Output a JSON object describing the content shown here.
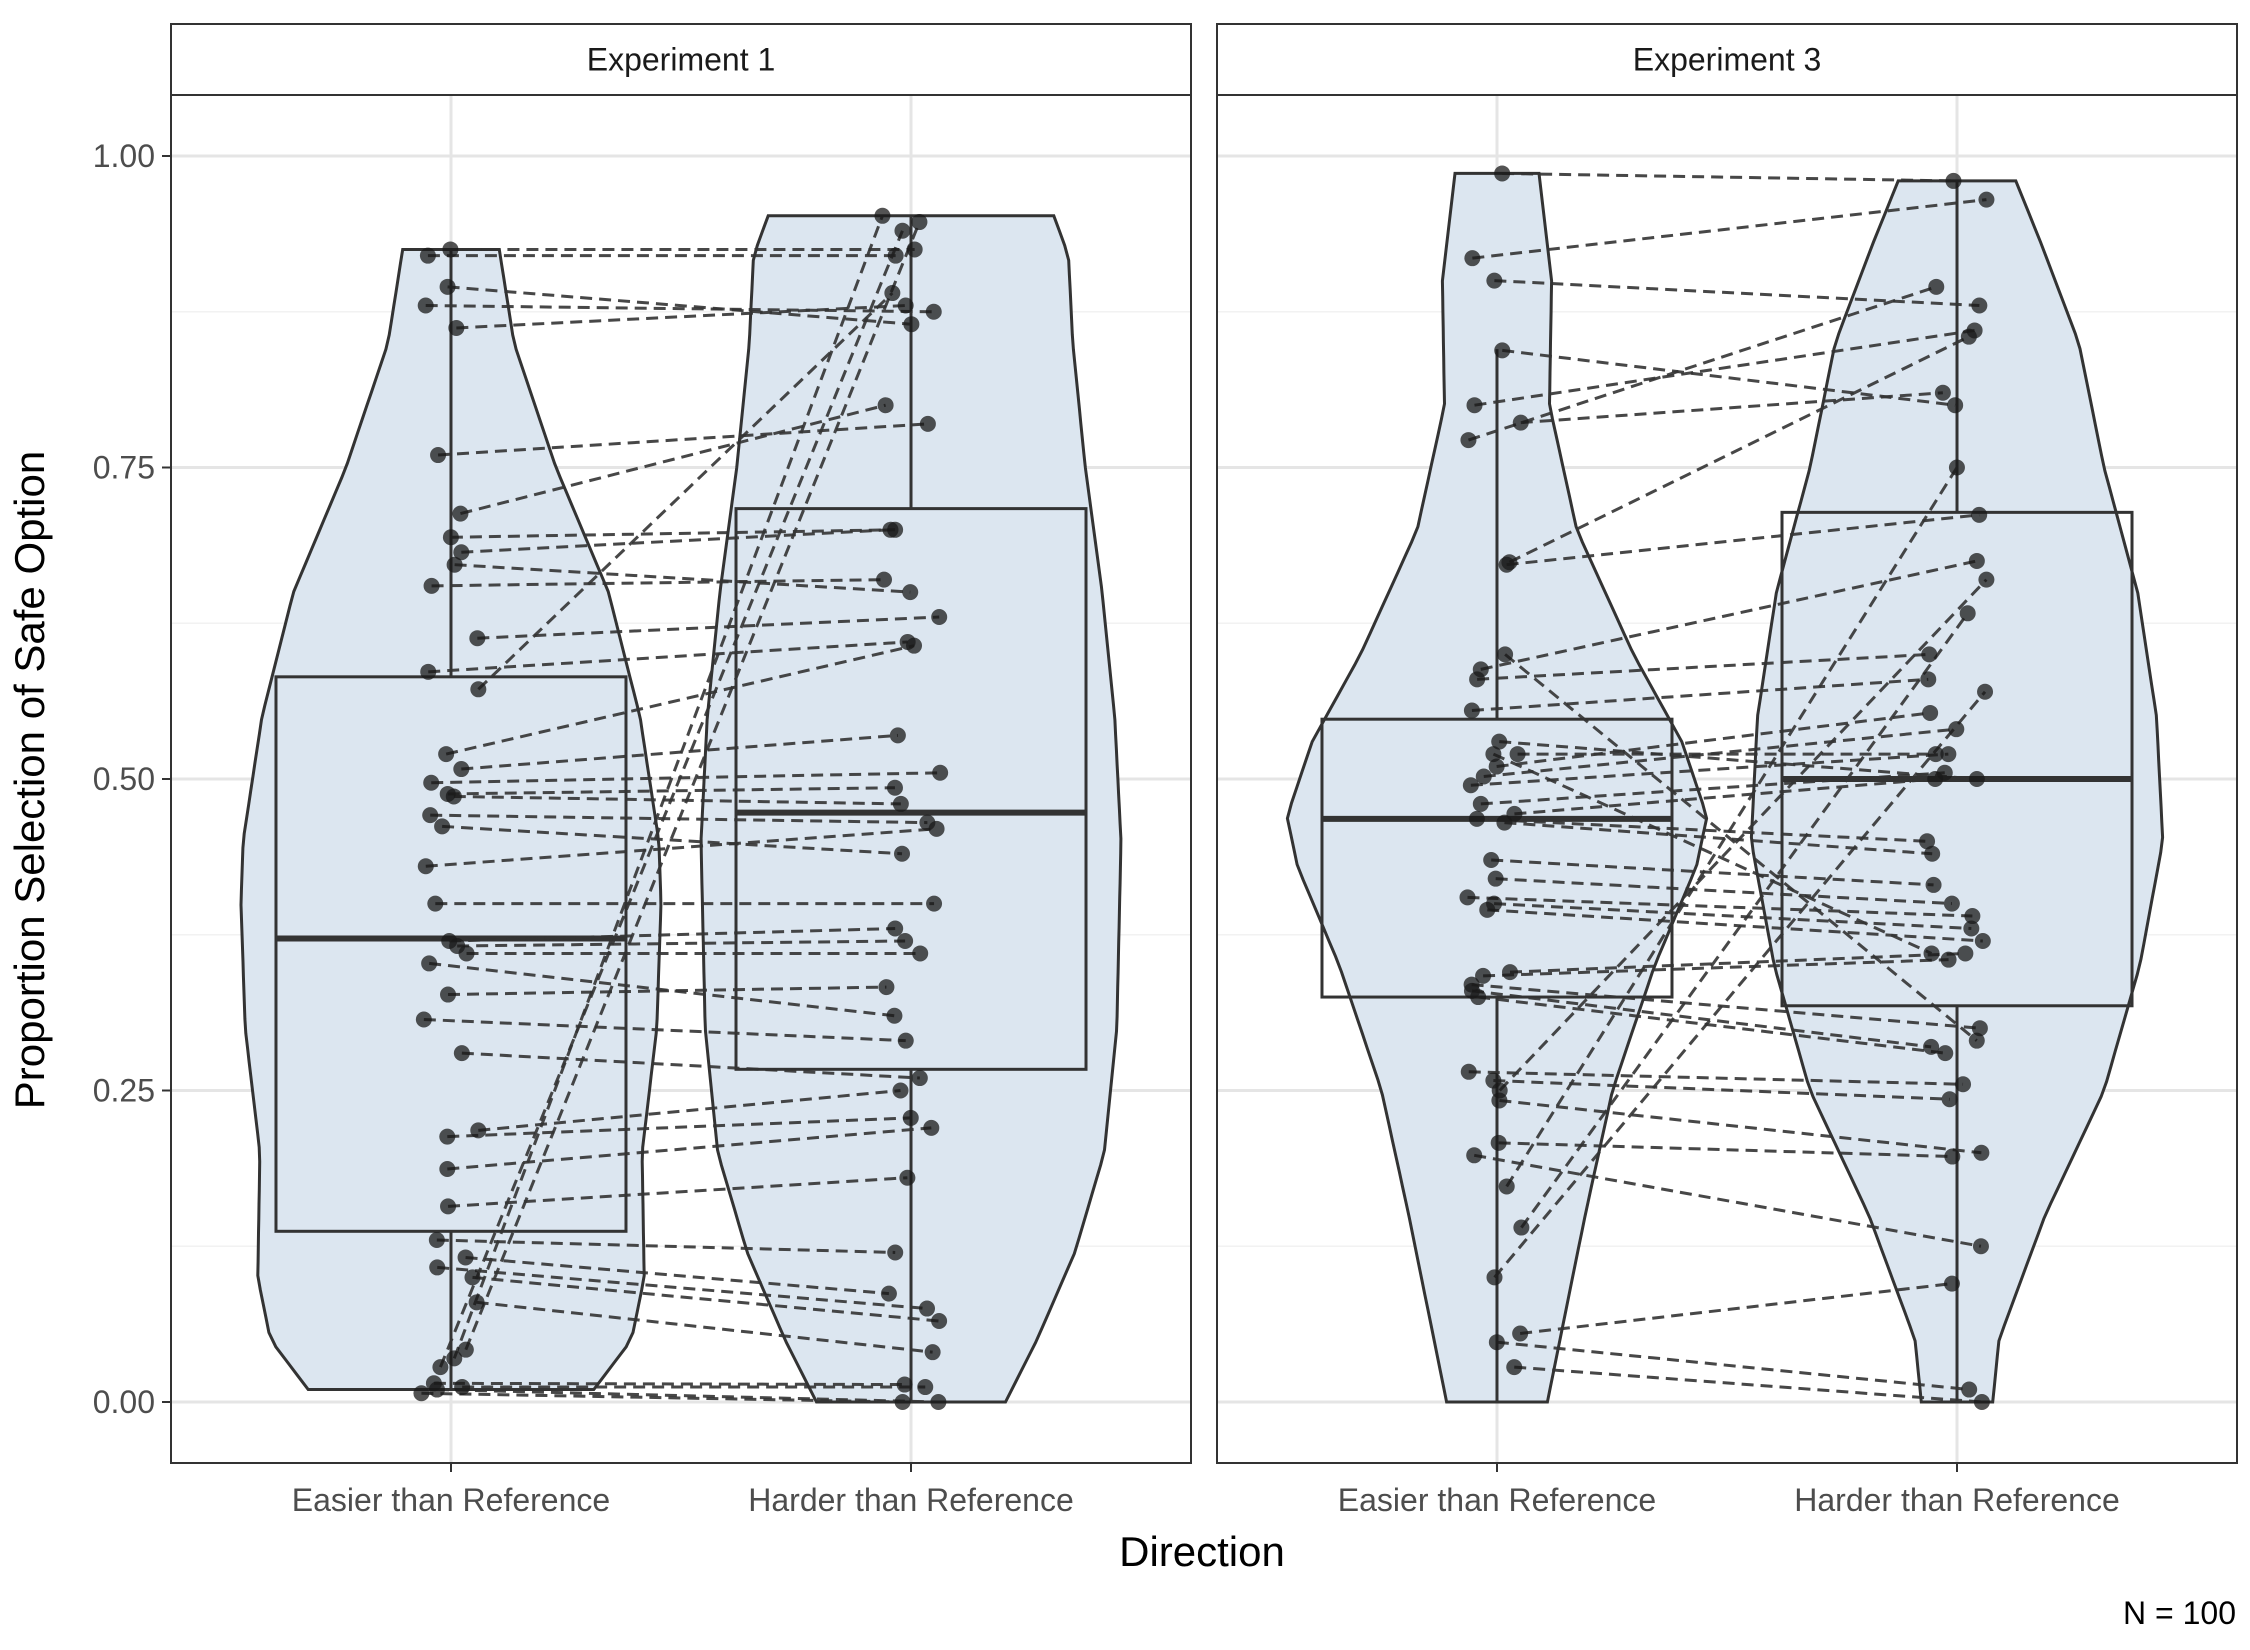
{
  "chart_data": {
    "type": "violin-box-dot",
    "xlabel": "Direction",
    "ylabel": "Proportion Selection of Safe Option",
    "caption": "N = 100",
    "categories": [
      "Easier than Reference",
      "Harder than Reference"
    ],
    "ylim": [
      0,
      1
    ],
    "yticks": [
      "0.00",
      "0.25",
      "0.50",
      "0.75",
      "1.00"
    ],
    "grid": true,
    "colors": {
      "violin_fill": "#dce6f0",
      "stroke": "#333333",
      "point": "#1a1a1a",
      "grid_major": "#e5e5e5",
      "grid_minor": "#f2f2f2"
    },
    "panels": [
      {
        "title": "Experiment 1",
        "violins": [
          {
            "ymin": 0.01,
            "ymax": 0.925,
            "profile": [
              [
                0.01,
                0.68
              ],
              [
                0.05,
                0.86
              ],
              [
                0.1,
                0.92
              ],
              [
                0.2,
                0.91
              ],
              [
                0.3,
                0.98
              ],
              [
                0.4,
                1.0
              ],
              [
                0.45,
                0.99
              ],
              [
                0.55,
                0.9
              ],
              [
                0.65,
                0.75
              ],
              [
                0.75,
                0.5
              ],
              [
                0.85,
                0.3
              ],
              [
                0.925,
                0.23
              ]
            ]
          },
          {
            "ymin": 0.0,
            "ymax": 0.952,
            "profile": [
              [
                0.0,
                0.45
              ],
              [
                0.05,
                0.6
              ],
              [
                0.12,
                0.78
              ],
              [
                0.2,
                0.92
              ],
              [
                0.3,
                0.98
              ],
              [
                0.45,
                1.0
              ],
              [
                0.55,
                0.97
              ],
              [
                0.65,
                0.91
              ],
              [
                0.75,
                0.83
              ],
              [
                0.85,
                0.77
              ],
              [
                0.92,
                0.75
              ],
              [
                0.952,
                0.68
              ]
            ]
          }
        ],
        "boxes": [
          {
            "q1": 0.137,
            "median": 0.372,
            "q3": 0.582,
            "lower": 0.01,
            "upper": 0.925
          },
          {
            "q1": 0.267,
            "median": 0.473,
            "q3": 0.717,
            "lower": 0.0,
            "upper": 0.952
          }
        ],
        "pairs": [
          [
            0.925,
            0.925
          ],
          [
            0.92,
            0.92
          ],
          [
            0.895,
            0.865
          ],
          [
            0.88,
            0.875
          ],
          [
            0.862,
            0.88
          ],
          [
            0.76,
            0.785
          ],
          [
            0.713,
            0.8
          ],
          [
            0.694,
            0.7
          ],
          [
            0.682,
            0.7
          ],
          [
            0.672,
            0.65
          ],
          [
            0.655,
            0.66
          ],
          [
            0.613,
            0.63
          ],
          [
            0.586,
            0.61
          ],
          [
            0.572,
            0.89
          ],
          [
            0.52,
            0.607
          ],
          [
            0.508,
            0.535
          ],
          [
            0.497,
            0.505
          ],
          [
            0.488,
            0.493
          ],
          [
            0.486,
            0.48
          ],
          [
            0.471,
            0.465
          ],
          [
            0.462,
            0.44
          ],
          [
            0.43,
            0.46
          ],
          [
            0.4,
            0.4
          ],
          [
            0.37,
            0.38
          ],
          [
            0.366,
            0.37
          ],
          [
            0.36,
            0.36
          ],
          [
            0.352,
            0.31
          ],
          [
            0.327,
            0.333
          ],
          [
            0.307,
            0.29
          ],
          [
            0.28,
            0.26
          ],
          [
            0.218,
            0.25
          ],
          [
            0.213,
            0.228
          ],
          [
            0.187,
            0.22
          ],
          [
            0.157,
            0.18
          ],
          [
            0.13,
            0.12
          ],
          [
            0.116,
            0.087
          ],
          [
            0.108,
            0.075
          ],
          [
            0.1,
            0.065
          ],
          [
            0.08,
            0.04
          ],
          [
            0.042,
            0.947
          ],
          [
            0.035,
            0.952
          ],
          [
            0.028,
            0.94
          ],
          [
            0.015,
            0.014
          ],
          [
            0.012,
            0.012
          ],
          [
            0.01,
            0.0
          ],
          [
            0.007,
            0.0
          ]
        ]
      },
      {
        "title": "Experiment 3",
        "violins": [
          {
            "ymin": 0.0,
            "ymax": 0.986,
            "profile": [
              [
                0.0,
                0.24
              ],
              [
                0.05,
                0.3
              ],
              [
                0.15,
                0.42
              ],
              [
                0.25,
                0.55
              ],
              [
                0.35,
                0.75
              ],
              [
                0.43,
                0.95
              ],
              [
                0.47,
                1.0
              ],
              [
                0.53,
                0.88
              ],
              [
                0.6,
                0.65
              ],
              [
                0.7,
                0.38
              ],
              [
                0.8,
                0.25
              ],
              [
                0.9,
                0.26
              ],
              [
                0.986,
                0.2
              ]
            ]
          },
          {
            "ymin": 0.0,
            "ymax": 0.98,
            "profile": [
              [
                0.0,
                0.17
              ],
              [
                0.05,
                0.2
              ],
              [
                0.15,
                0.42
              ],
              [
                0.25,
                0.7
              ],
              [
                0.35,
                0.87
              ],
              [
                0.45,
                0.98
              ],
              [
                0.55,
                0.95
              ],
              [
                0.65,
                0.86
              ],
              [
                0.75,
                0.7
              ],
              [
                0.85,
                0.58
              ],
              [
                0.93,
                0.4
              ],
              [
                0.98,
                0.28
              ]
            ]
          }
        ],
        "boxes": [
          {
            "q1": 0.325,
            "median": 0.468,
            "q3": 0.548,
            "lower": 0.0,
            "upper": 0.845
          },
          {
            "q1": 0.318,
            "median": 0.5,
            "q3": 0.714,
            "lower": 0.0,
            "upper": 0.98
          }
        ],
        "pairs": [
          [
            0.986,
            0.98
          ],
          [
            0.918,
            0.965
          ],
          [
            0.9,
            0.88
          ],
          [
            0.844,
            0.8
          ],
          [
            0.8,
            0.86
          ],
          [
            0.786,
            0.81
          ],
          [
            0.772,
            0.895
          ],
          [
            0.674,
            0.855
          ],
          [
            0.672,
            0.712
          ],
          [
            0.588,
            0.675
          ],
          [
            0.58,
            0.6
          ],
          [
            0.555,
            0.58
          ],
          [
            0.53,
            0.5
          ],
          [
            0.52,
            0.52
          ],
          [
            0.51,
            0.553
          ],
          [
            0.502,
            0.54
          ],
          [
            0.495,
            0.52
          ],
          [
            0.48,
            0.505
          ],
          [
            0.472,
            0.5
          ],
          [
            0.468,
            0.45
          ],
          [
            0.465,
            0.44
          ],
          [
            0.435,
            0.415
          ],
          [
            0.42,
            0.4
          ],
          [
            0.405,
            0.39
          ],
          [
            0.4,
            0.38
          ],
          [
            0.395,
            0.37
          ],
          [
            0.345,
            0.36
          ],
          [
            0.342,
            0.355
          ],
          [
            0.335,
            0.3
          ],
          [
            0.33,
            0.285
          ],
          [
            0.325,
            0.28
          ],
          [
            0.265,
            0.255
          ],
          [
            0.258,
            0.243
          ],
          [
            0.242,
            0.2
          ],
          [
            0.208,
            0.197
          ],
          [
            0.198,
            0.125
          ],
          [
            0.173,
            0.75
          ],
          [
            0.14,
            0.633
          ],
          [
            0.1,
            0.57
          ],
          [
            0.055,
            0.095
          ],
          [
            0.048,
            0.01
          ],
          [
            0.028,
            0.0
          ],
          [
            0.25,
            0.66
          ],
          [
            0.6,
            0.29
          ],
          [
            0.52,
            0.36
          ]
        ]
      }
    ]
  }
}
